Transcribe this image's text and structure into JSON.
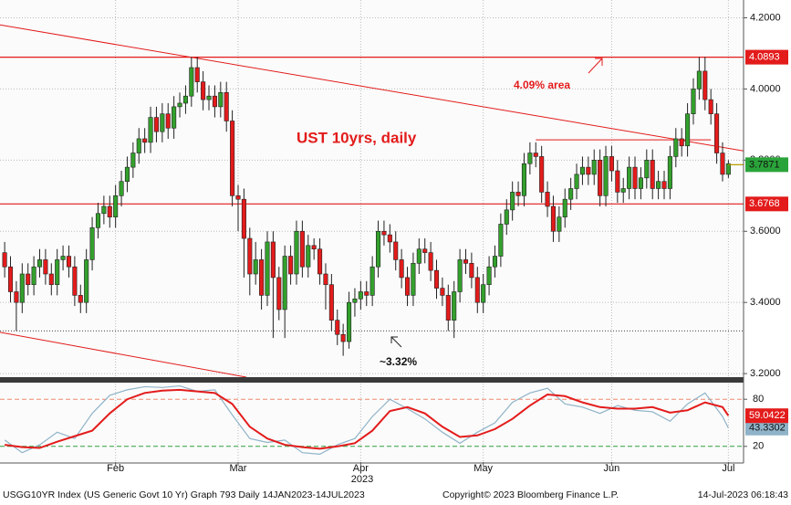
{
  "chart_data": {
    "type": "candlestick",
    "title": "UST 10yrs, daily",
    "candles": [
      [
        3.54,
        3.57,
        3.47,
        3.5
      ],
      [
        3.5,
        3.53,
        3.4,
        3.43
      ],
      [
        3.43,
        3.46,
        3.32,
        3.4
      ],
      [
        3.4,
        3.51,
        3.37,
        3.48
      ],
      [
        3.48,
        3.51,
        3.42,
        3.45
      ],
      [
        3.45,
        3.53,
        3.42,
        3.5
      ],
      [
        3.5,
        3.55,
        3.47,
        3.52
      ],
      [
        3.52,
        3.55,
        3.45,
        3.48
      ],
      [
        3.48,
        3.51,
        3.42,
        3.45
      ],
      [
        3.45,
        3.55,
        3.42,
        3.52
      ],
      [
        3.52,
        3.56,
        3.49,
        3.53
      ],
      [
        3.53,
        3.56,
        3.47,
        3.5
      ],
      [
        3.5,
        3.53,
        3.39,
        3.42
      ],
      [
        3.42,
        3.45,
        3.37,
        3.4
      ],
      [
        3.4,
        3.55,
        3.37,
        3.52
      ],
      [
        3.52,
        3.64,
        3.49,
        3.61
      ],
      [
        3.61,
        3.68,
        3.58,
        3.65
      ],
      [
        3.65,
        3.7,
        3.62,
        3.67
      ],
      [
        3.67,
        3.7,
        3.61,
        3.64
      ],
      [
        3.64,
        3.73,
        3.61,
        3.7
      ],
      [
        3.7,
        3.77,
        3.67,
        3.74
      ],
      [
        3.74,
        3.81,
        3.71,
        3.78
      ],
      [
        3.78,
        3.85,
        3.75,
        3.82
      ],
      [
        3.82,
        3.89,
        3.79,
        3.86
      ],
      [
        3.86,
        3.89,
        3.82,
        3.85
      ],
      [
        3.85,
        3.95,
        3.82,
        3.92
      ],
      [
        3.92,
        3.95,
        3.85,
        3.88
      ],
      [
        3.88,
        3.96,
        3.85,
        3.93
      ],
      [
        3.93,
        3.96,
        3.86,
        3.89
      ],
      [
        3.89,
        3.98,
        3.86,
        3.95
      ],
      [
        3.95,
        3.99,
        3.92,
        3.96
      ],
      [
        3.96,
        4.01,
        3.93,
        3.98
      ],
      [
        3.98,
        4.09,
        3.95,
        4.06
      ],
      [
        4.06,
        4.09,
        3.99,
        4.02
      ],
      [
        4.02,
        4.05,
        3.94,
        3.97
      ],
      [
        3.97,
        4.01,
        3.94,
        3.98
      ],
      [
        3.98,
        4.01,
        3.92,
        3.95
      ],
      [
        3.95,
        4.02,
        3.92,
        3.99
      ],
      [
        3.99,
        4.02,
        3.88,
        3.91
      ],
      [
        3.91,
        3.94,
        3.67,
        3.7
      ],
      [
        3.7,
        3.73,
        3.6,
        3.69
      ],
      [
        3.69,
        3.72,
        3.47,
        3.58
      ],
      [
        3.58,
        3.61,
        3.42,
        3.48
      ],
      [
        3.48,
        3.57,
        3.45,
        3.52
      ],
      [
        3.52,
        3.55,
        3.38,
        3.42
      ],
      [
        3.42,
        3.6,
        3.39,
        3.57
      ],
      [
        3.57,
        3.6,
        3.3,
        3.47
      ],
      [
        3.47,
        3.5,
        3.35,
        3.38
      ],
      [
        3.38,
        3.56,
        3.3,
        3.53
      ],
      [
        3.53,
        3.56,
        3.45,
        3.48
      ],
      [
        3.48,
        3.63,
        3.45,
        3.6
      ],
      [
        3.6,
        3.63,
        3.47,
        3.5
      ],
      [
        3.5,
        3.59,
        3.47,
        3.56
      ],
      [
        3.56,
        3.58,
        3.52,
        3.55
      ],
      [
        3.55,
        3.58,
        3.45,
        3.48
      ],
      [
        3.48,
        3.51,
        3.38,
        3.45
      ],
      [
        3.45,
        3.48,
        3.32,
        3.35
      ],
      [
        3.35,
        3.38,
        3.28,
        3.31
      ],
      [
        3.31,
        3.34,
        3.25,
        3.29
      ],
      [
        3.29,
        3.43,
        3.27,
        3.4
      ],
      [
        3.4,
        3.44,
        3.36,
        3.41
      ],
      [
        3.41,
        3.46,
        3.38,
        3.43
      ],
      [
        3.43,
        3.46,
        3.39,
        3.42
      ],
      [
        3.42,
        3.53,
        3.39,
        3.5
      ],
      [
        3.5,
        3.63,
        3.47,
        3.6
      ],
      [
        3.6,
        3.63,
        3.56,
        3.59
      ],
      [
        3.59,
        3.62,
        3.54,
        3.57
      ],
      [
        3.57,
        3.6,
        3.49,
        3.52
      ],
      [
        3.52,
        3.55,
        3.44,
        3.47
      ],
      [
        3.47,
        3.5,
        3.39,
        3.42
      ],
      [
        3.42,
        3.54,
        3.39,
        3.51
      ],
      [
        3.51,
        3.58,
        3.48,
        3.55
      ],
      [
        3.55,
        3.58,
        3.51,
        3.54
      ],
      [
        3.54,
        3.57,
        3.46,
        3.49
      ],
      [
        3.49,
        3.52,
        3.41,
        3.44
      ],
      [
        3.44,
        3.47,
        3.39,
        3.42
      ],
      [
        3.42,
        3.45,
        3.32,
        3.35
      ],
      [
        3.35,
        3.46,
        3.3,
        3.43
      ],
      [
        3.43,
        3.55,
        3.4,
        3.52
      ],
      [
        3.52,
        3.55,
        3.48,
        3.51
      ],
      [
        3.51,
        3.54,
        3.44,
        3.47
      ],
      [
        3.47,
        3.5,
        3.37,
        3.4
      ],
      [
        3.4,
        3.48,
        3.37,
        3.45
      ],
      [
        3.45,
        3.53,
        3.42,
        3.5
      ],
      [
        3.5,
        3.56,
        3.47,
        3.53
      ],
      [
        3.53,
        3.65,
        3.5,
        3.62
      ],
      [
        3.62,
        3.69,
        3.59,
        3.66
      ],
      [
        3.66,
        3.74,
        3.63,
        3.71
      ],
      [
        3.71,
        3.74,
        3.67,
        3.7
      ],
      [
        3.7,
        3.82,
        3.67,
        3.79
      ],
      [
        3.79,
        3.85,
        3.76,
        3.82
      ],
      [
        3.82,
        3.85,
        3.78,
        3.81
      ],
      [
        3.81,
        3.84,
        3.68,
        3.71
      ],
      [
        3.71,
        3.74,
        3.64,
        3.67
      ],
      [
        3.67,
        3.7,
        3.57,
        3.6
      ],
      [
        3.6,
        3.67,
        3.57,
        3.64
      ],
      [
        3.64,
        3.72,
        3.61,
        3.69
      ],
      [
        3.69,
        3.75,
        3.66,
        3.72
      ],
      [
        3.72,
        3.79,
        3.69,
        3.76
      ],
      [
        3.76,
        3.81,
        3.73,
        3.78
      ],
      [
        3.78,
        3.81,
        3.73,
        3.76
      ],
      [
        3.76,
        3.83,
        3.73,
        3.8
      ],
      [
        3.8,
        3.83,
        3.67,
        3.7
      ],
      [
        3.7,
        3.84,
        3.67,
        3.81
      ],
      [
        3.81,
        3.84,
        3.74,
        3.77
      ],
      [
        3.77,
        3.8,
        3.68,
        3.71
      ],
      [
        3.71,
        3.75,
        3.68,
        3.72
      ],
      [
        3.72,
        3.81,
        3.69,
        3.78
      ],
      [
        3.78,
        3.81,
        3.69,
        3.72
      ],
      [
        3.72,
        3.78,
        3.69,
        3.75
      ],
      [
        3.75,
        3.83,
        3.72,
        3.8
      ],
      [
        3.8,
        3.83,
        3.69,
        3.72
      ],
      [
        3.72,
        3.77,
        3.69,
        3.74
      ],
      [
        3.74,
        3.77,
        3.69,
        3.72
      ],
      [
        3.72,
        3.84,
        3.69,
        3.81
      ],
      [
        3.81,
        3.89,
        3.78,
        3.86
      ],
      [
        3.86,
        3.89,
        3.81,
        3.84
      ],
      [
        3.84,
        3.96,
        3.81,
        3.93
      ],
      [
        3.93,
        4.03,
        3.9,
        4.0
      ],
      [
        4.0,
        4.09,
        3.97,
        4.05
      ],
      [
        4.05,
        4.09,
        3.94,
        3.97
      ],
      [
        3.97,
        4.0,
        3.9,
        3.93
      ],
      [
        3.93,
        3.96,
        3.79,
        3.82
      ],
      [
        3.82,
        3.85,
        3.74,
        3.76
      ],
      [
        3.76,
        3.8,
        3.75,
        3.79
      ]
    ],
    "up_color": "#33a02c",
    "down_color": "#e31b1b",
    "xlim": [
      -0.8,
      126.6
    ],
    "xticks": [
      {
        "value": 19,
        "label": "Feb"
      },
      {
        "value": 40,
        "label": "Mar"
      },
      {
        "value": 61,
        "label": "Apr"
      },
      {
        "value": 82,
        "label": "May"
      },
      {
        "value": 104,
        "label": "Jun"
      },
      {
        "value": 124,
        "label": "Jul"
      }
    ],
    "x_axis_label": "2023",
    "ylim": [
      3.19,
      4.25
    ],
    "yticks": [
      {
        "value": 3.2,
        "label": "3.2000"
      },
      {
        "value": 3.4,
        "label": "3.4000"
      },
      {
        "value": 3.6,
        "label": "3.6000"
      },
      {
        "value": 3.8,
        "label": "3.8000"
      },
      {
        "value": 4.0,
        "label": "4.0000"
      },
      {
        "value": 4.2,
        "label": "4.2000"
      }
    ],
    "grid": true,
    "levels": [
      4.0893,
      3.6768
    ],
    "level_color": "#e31b1b",
    "last_price": 3.7871,
    "last_price_color": "#2aa43a",
    "support": 3.32,
    "trendlines": [
      {
        "x": [
          -0.8,
          126.6
        ],
        "values": [
          4.18,
          3.826
        ]
      },
      {
        "x": [
          -0.8,
          41.4
        ],
        "values": [
          3.316,
          3.19
        ]
      },
      {
        "x": [
          91,
          121
        ],
        "values": [
          3.857,
          3.857
        ]
      }
    ],
    "annotations": [
      "4.09% area",
      "~3.32%"
    ],
    "oscillator": {
      "ylim": [
        0,
        100
      ],
      "yticks": [
        20,
        80
      ],
      "reference_colors": [
        "#2e9e3e",
        "#f08a70"
      ],
      "series": [
        {
          "color": "#e31b1b",
          "x": [
            0,
            3,
            6,
            9,
            12,
            15,
            18,
            21,
            24,
            27,
            30,
            33,
            36,
            39,
            42,
            45,
            48,
            51,
            54,
            57,
            60,
            63,
            66,
            69,
            72,
            75,
            78,
            81,
            84,
            87,
            90,
            93,
            96,
            99,
            102,
            105,
            108,
            111,
            114,
            117,
            120,
            123,
            124
          ],
          "values": [
            22,
            19,
            18,
            26,
            33,
            40,
            62,
            80,
            88,
            91,
            92,
            90,
            88,
            74,
            45,
            30,
            22,
            19,
            17,
            20,
            24,
            40,
            65,
            70,
            62,
            45,
            32,
            34,
            42,
            55,
            72,
            86,
            84,
            76,
            70,
            68,
            68,
            70,
            63,
            66,
            76,
            70,
            59.0422
          ]
        },
        {
          "color": "#8fb3c8",
          "x": [
            0,
            3,
            6,
            9,
            12,
            15,
            18,
            21,
            24,
            27,
            30,
            33,
            36,
            39,
            42,
            45,
            48,
            51,
            54,
            57,
            60,
            63,
            66,
            69,
            72,
            75,
            78,
            81,
            84,
            87,
            90,
            93,
            96,
            99,
            102,
            105,
            108,
            111,
            114,
            117,
            120,
            123,
            124
          ],
          "values": [
            28,
            12,
            22,
            38,
            30,
            62,
            85,
            92,
            96,
            95,
            97,
            90,
            92,
            60,
            30,
            25,
            28,
            12,
            10,
            22,
            30,
            58,
            80,
            68,
            55,
            38,
            24,
            38,
            50,
            76,
            88,
            94,
            74,
            70,
            62,
            72,
            66,
            64,
            52,
            74,
            88,
            58,
            43.3302
          ]
        }
      ]
    },
    "footer": {
      "left": "USGG10YR Index (US Generic Govt 10 Yr) Graph 793  Daily 14JAN2023-14JUL2023",
      "center": "Copyright© 2023 Bloomberg Finance L.P.",
      "right": "14-Jul-2023 06:18:43"
    }
  }
}
